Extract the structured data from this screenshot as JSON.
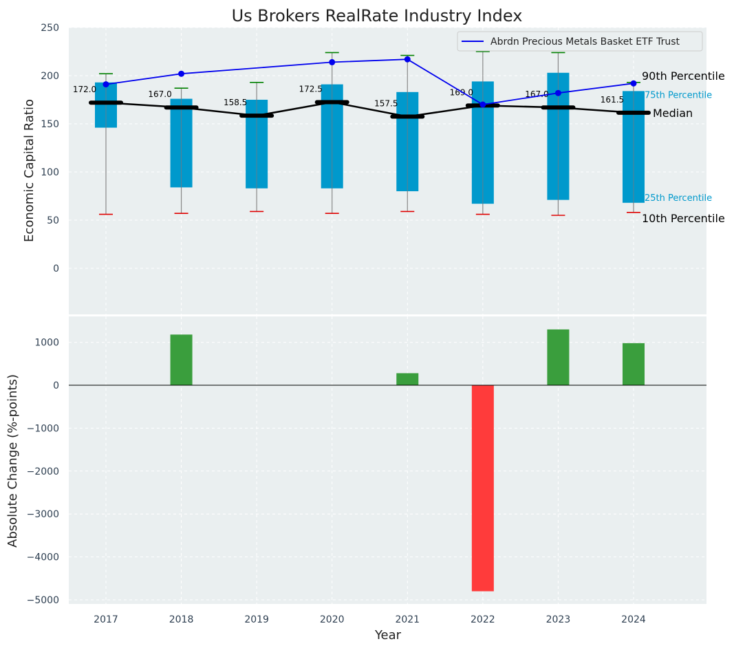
{
  "chart_data": [
    {
      "type": "box",
      "title": "Us Brokers RealRate Industry Index",
      "ylabel": "Economic Capital Ratio",
      "ylim": [
        -50,
        250
      ],
      "yticks": [
        0,
        50,
        100,
        150,
        200,
        250
      ],
      "grid": true,
      "legend_placement": "top-right",
      "categories": [
        "2017",
        "2018",
        "2019",
        "2020",
        "2021",
        "2022",
        "2023",
        "2024"
      ],
      "p10": [
        56,
        57,
        59,
        57,
        59,
        56,
        55,
        58
      ],
      "p25": [
        146,
        84,
        83,
        83,
        80,
        67,
        71,
        68
      ],
      "median": [
        172.0,
        167.0,
        158.5,
        172.5,
        157.5,
        169.0,
        167.0,
        161.5
      ],
      "median_labels": [
        "172.0",
        "167.0",
        "158.5",
        "172.5",
        "157.5",
        "169.0",
        "167.0",
        "161.5"
      ],
      "p75": [
        193,
        176,
        175,
        191,
        183,
        194,
        203,
        184
      ],
      "p90": [
        202,
        187,
        193,
        224,
        221,
        225,
        224,
        193
      ],
      "series": [
        {
          "name": "Abrdn Precious Metals Basket ETF Trust",
          "values": [
            191,
            202,
            214,
            217,
            170,
            182,
            192
          ]
        }
      ],
      "series_x": [
        "2017",
        "2018",
        "2020",
        "2021",
        "2022",
        "2023",
        "2024"
      ],
      "right_labels": {
        "p90": "90th Percentile",
        "p75": "75th Percentile",
        "median": "Median",
        "p25": "25th Percentile",
        "p10": "10th Percentile"
      },
      "colors": {
        "box": "#0099cc",
        "median": "#000000",
        "series": "#0000ee",
        "p90_cap": "#008000",
        "p10_cap": "#e00000",
        "whisker": "#888888",
        "background": "#eaeff0"
      }
    },
    {
      "type": "bar",
      "ylabel": "Absolute Change (%-points)",
      "xlabel": "Year",
      "ylim": [
        -5000,
        1600
      ],
      "yticks": [
        -5000,
        -4000,
        -3000,
        -2000,
        -1000,
        0,
        1000
      ],
      "ytick_labels": [
        "−5000",
        "−4000",
        "−3000",
        "−2000",
        "−1000",
        "0",
        "1000"
      ],
      "grid": true,
      "categories": [
        "2017",
        "2018",
        "2019",
        "2020",
        "2021",
        "2022",
        "2023",
        "2024"
      ],
      "values": [
        0,
        1180,
        0,
        0,
        280,
        -4800,
        1300,
        980
      ],
      "colors": {
        "positive": "#3a9e3d",
        "negative": "#ff3b3b",
        "background": "#eaeff0"
      }
    }
  ]
}
